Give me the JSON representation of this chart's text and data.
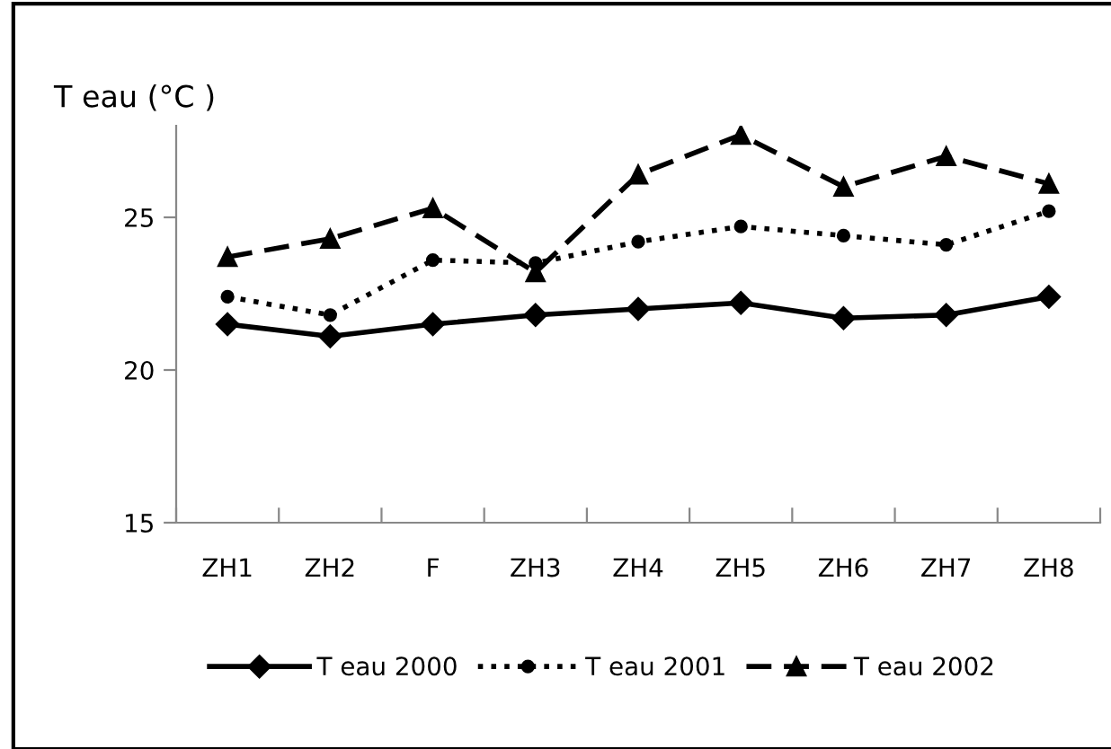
{
  "chart_data": {
    "type": "line",
    "ylabel": "T eau (°C )",
    "categories": [
      "ZH1",
      "ZH2",
      "F",
      "ZH3",
      "ZH4",
      "ZH5",
      "ZH6",
      "ZH7",
      "ZH8"
    ],
    "ylim": [
      15,
      28
    ],
    "yticks": [
      15,
      20,
      25
    ],
    "grid": false,
    "legend": "bottom",
    "series": [
      {
        "name": "T eau 2000",
        "color": "#000000",
        "marker": "diamond",
        "line_style": "solid",
        "values": [
          21.5,
          21.1,
          21.5,
          21.8,
          22.0,
          22.2,
          21.7,
          21.8,
          22.4
        ]
      },
      {
        "name": "T eau 2001",
        "color": "#000000",
        "marker": "circle",
        "line_style": "dotted",
        "values": [
          22.4,
          21.8,
          23.6,
          23.5,
          24.2,
          24.7,
          24.4,
          24.1,
          25.2
        ]
      },
      {
        "name": "T eau 2002",
        "color": "#000000",
        "marker": "triangle",
        "line_style": "dashed",
        "values": [
          23.7,
          24.3,
          25.3,
          23.2,
          26.4,
          27.7,
          26.0,
          27.0,
          26.1
        ]
      }
    ]
  }
}
